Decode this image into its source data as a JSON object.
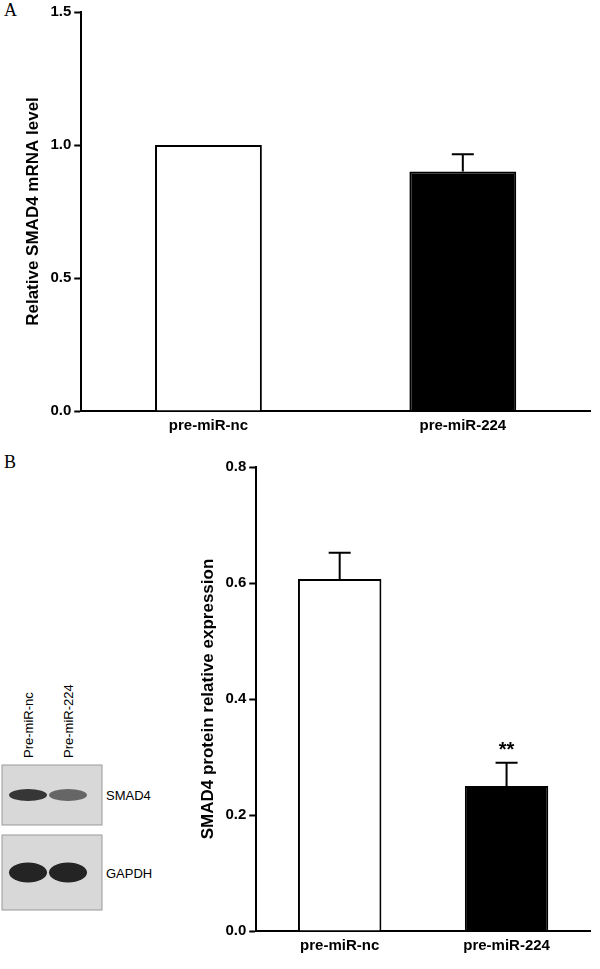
{
  "chart_data": [
    {
      "type": "bar",
      "panel": "A",
      "categories": [
        "pre-miR-nc",
        "pre-miR-224"
      ],
      "values": [
        1.0,
        0.9
      ],
      "errors": [
        0,
        0.065
      ],
      "colors": [
        "#ffffff",
        "#000000"
      ],
      "y_label": "Relative SMAD4 mRNA level",
      "ylim": [
        0,
        1.5
      ],
      "yticks": [
        {
          "value": 0,
          "label": "0.0"
        },
        0.5,
        {
          "value": 1,
          "label": "1.0"
        },
        1.5
      ],
      "grid": false
    },
    {
      "type": "bar",
      "panel": "B",
      "categories": [
        "pre-miR-nc",
        "pre-miR-224"
      ],
      "values": [
        0.607,
        0.25
      ],
      "errors": [
        0.045,
        0.04
      ],
      "colors": [
        "#ffffff",
        "#000000"
      ],
      "y_label": "SMAD4 protein relative expression",
      "ylim": [
        0,
        0.8
      ],
      "yticks": [
        {
          "value": 0,
          "label": "0.0"
        },
        0.2,
        0.4,
        0.6,
        0.8
      ],
      "grid": false,
      "annotations": [
        {
          "text": "**",
          "category": "pre-miR-224"
        }
      ]
    }
  ],
  "western_blot": {
    "lanes": [
      "Pre-miR-nc",
      "Pre-miR-224"
    ],
    "bands": [
      "SMAD4",
      "GAPDH"
    ]
  }
}
